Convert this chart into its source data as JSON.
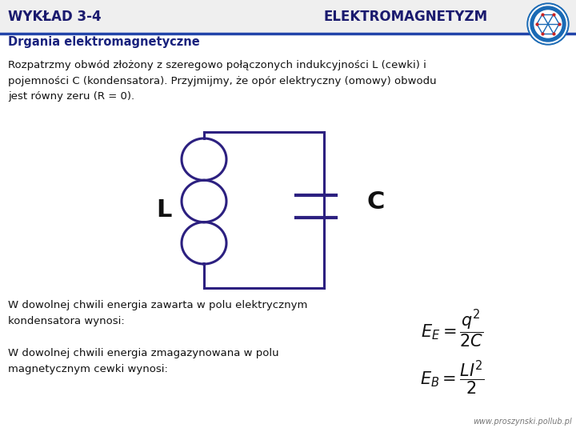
{
  "title_left": "WYKŁAD 3-4",
  "title_right": "ELEKTROMAGNETYZM",
  "subtitle": "Drgania elektromagnetyczne",
  "body_text1": "Rozpatrzmy obwód złożony z szeregowo połączonych indukcyjności L (cewki) i\npojemności C (kondensatora). Przyjmijmy, że opór elektryczny (omowy) obwodu\njest równy zeru (R = 0).",
  "label_L": "L",
  "label_C": "C",
  "text_energy1": "W dowolnej chwili energia zawarta w polu elektrycznym\nkondensatora wynosi:",
  "text_energy2": "W dowolnej chwili energia zmagazynowana w polu\nmagnetycznym cewki wynosi:",
  "footer": "www.proszynski.pollub.pl",
  "header_line_color": "#2244aa",
  "circuit_color": "#2c2080",
  "bg_color": "#ffffff",
  "title_color": "#1a1a6e",
  "subtitle_color": "#1a237e",
  "text_color": "#111111"
}
